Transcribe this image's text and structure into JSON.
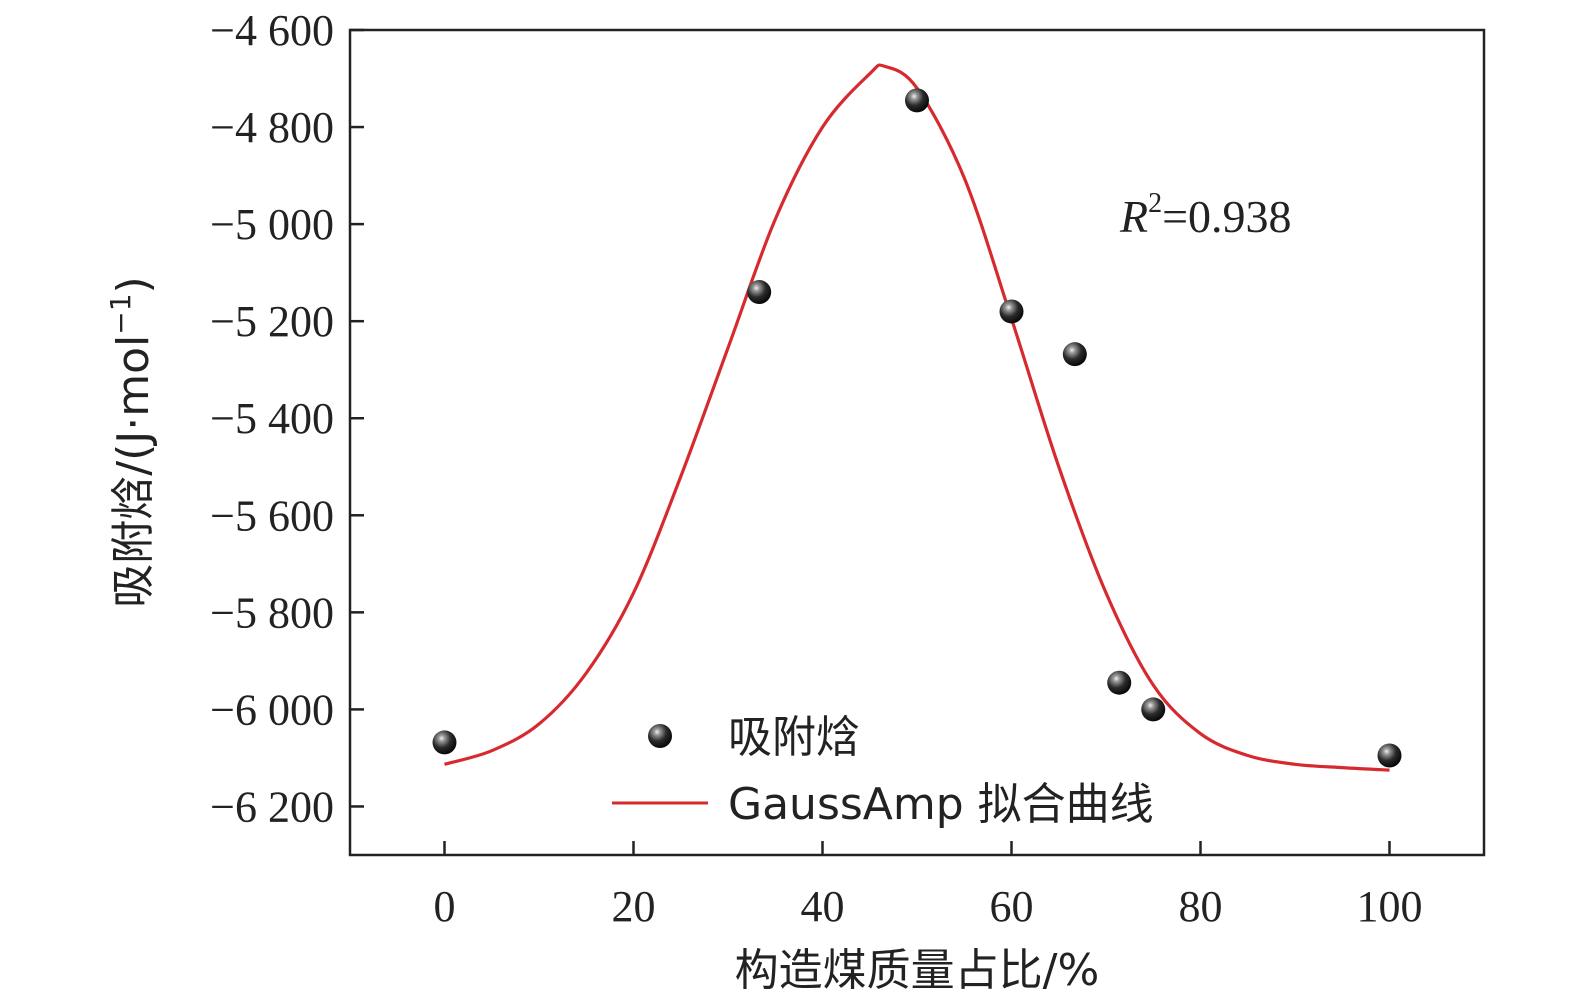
{
  "chart_data": {
    "type": "scatter",
    "xlabel": "构造煤质量占比/%",
    "ylabel": "吸附焓/(J·mol",
    "ylabel_sup": "−1",
    "ylabel_close": ")",
    "xlim": [
      -10,
      110
    ],
    "ylim": [
      -6300,
      -4600
    ],
    "x_ticks": [
      0,
      20,
      40,
      60,
      80,
      100
    ],
    "x_tick_labels": [
      "0",
      "20",
      "40",
      "60",
      "80",
      "100"
    ],
    "y_ticks": [
      -4600,
      -4800,
      -5000,
      -5200,
      -5400,
      -5600,
      -5800,
      -6000,
      -6200
    ],
    "y_tick_labels": [
      "−4 600",
      "−4 800",
      "−5 000",
      "−5 200",
      "−5 400",
      "−5 600",
      "−5 800",
      "−6 000",
      "−6 200"
    ],
    "annotation": {
      "r": "R",
      "sup": "2",
      "rest": "=0.938"
    },
    "legend_placement": "bottom-center",
    "series": [
      {
        "name": "吸附焓",
        "kind": "points",
        "color": "#1a1a1a",
        "x": [
          0,
          33.3,
          50,
          60,
          66.7,
          71.4,
          75,
          100
        ],
        "y": [
          -6068,
          -5140,
          -4745,
          -5180,
          -5268,
          -5945,
          -6000,
          -6095
        ]
      },
      {
        "name": "GaussAmp 拟合曲线",
        "kind": "line",
        "color": "#d62a2e",
        "x": [
          0,
          5,
          10,
          15,
          20,
          25,
          30,
          35,
          40,
          45,
          46.6,
          50,
          55,
          60,
          65,
          70,
          75,
          80,
          85,
          90,
          95,
          100
        ],
        "y": [
          -6113,
          -6085,
          -6030,
          -5925,
          -5760,
          -5520,
          -5255,
          -4990,
          -4800,
          -4690,
          -4675,
          -4720,
          -4905,
          -5195,
          -5500,
          -5760,
          -5950,
          -6050,
          -6095,
          -6113,
          -6120,
          -6125
        ]
      }
    ]
  }
}
